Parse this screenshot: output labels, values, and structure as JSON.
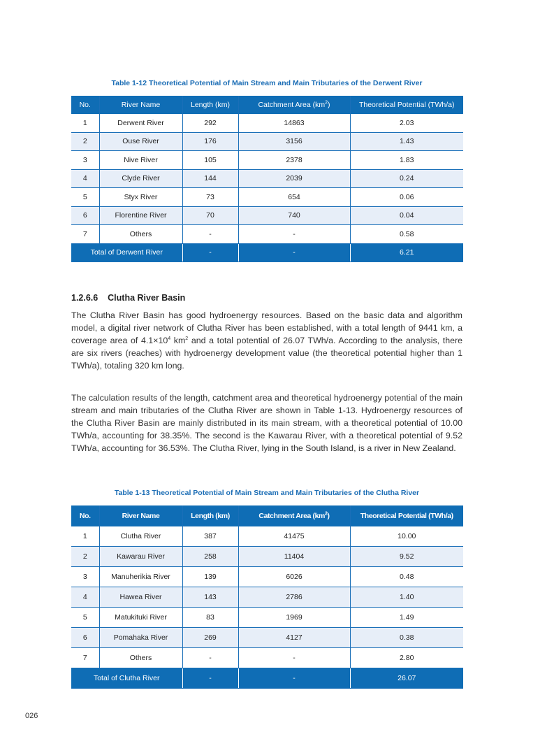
{
  "table1": {
    "caption": "Table 1-12    Theoretical Potential of Main Stream and Main Tributaries of the Derwent River",
    "headers": [
      "No.",
      "River Name",
      "Length (km)",
      "Catchment Area (km",
      "Theoretical Potential (TWh/a)"
    ],
    "header_sup": "2",
    "rows": [
      [
        "1",
        "Derwent River",
        "292",
        "14863",
        "2.03"
      ],
      [
        "2",
        "Ouse River",
        "176",
        "3156",
        "1.43"
      ],
      [
        "3",
        "Nive River",
        "105",
        "2378",
        "1.83"
      ],
      [
        "4",
        "Clyde River",
        "144",
        "2039",
        "0.24"
      ],
      [
        "5",
        "Styx River",
        "73",
        "654",
        "0.06"
      ],
      [
        "6",
        "Florentine River",
        "70",
        "740",
        "0.04"
      ],
      [
        "7",
        "Others",
        "-",
        "-",
        "0.58"
      ]
    ],
    "total": [
      "Total of Derwent River",
      "-",
      "-",
      "6.21"
    ]
  },
  "section": {
    "number": "1.2.6.6",
    "title": "Clutha River Basin"
  },
  "paragraph1": {
    "a": "The Clutha River Basin has good hydroenergy resources. Based on the basic data and algorithm model, a digital river network of Clutha River has been established, with a total length of 9441 km, a coverage area of 4.1×10",
    "sup1": "4",
    "b": " km",
    "sup2": "2",
    "c": " and a total potential of 26.07 TWh/a. According to the analysis, there are six rivers (reaches) with hydroenergy development value (the theoretical potential higher than 1 TWh/a), totaling 320 km long."
  },
  "paragraph2": "The calculation results of the length, catchment area and theoretical hydroenergy potential of the main stream and main tributaries of the Clutha River are shown in Table 1-13. Hydroenergy resources of the Clutha River Basin are mainly distributed in its main stream, with a theoretical potential of 10.00 TWh/a, accounting for 38.35%. The second is the Kawarau River, with a theoretical potential of 9.52 TWh/a, accounting for 36.53%. The Clutha River, lying in the South Island, is a river in New Zealand.",
  "table2": {
    "caption": "Table 1-13    Theoretical Potential of Main Stream and Main Tributaries of the Clutha River",
    "headers": [
      "No.",
      "River Name",
      "Length (km)",
      "Catchment Area (km",
      "Theoretical Potential (TWh/a)"
    ],
    "header_sup": "2",
    "rows": [
      [
        "1",
        "Clutha River",
        "387",
        "41475",
        "10.00"
      ],
      [
        "2",
        "Kawarau River",
        "258",
        "11404",
        "9.52"
      ],
      [
        "3",
        "Manuherikia River",
        "139",
        "6026",
        "0.48"
      ],
      [
        "4",
        "Hawea River",
        "143",
        "2786",
        "1.40"
      ],
      [
        "5",
        "Matukituki River",
        "83",
        "1969",
        "1.49"
      ],
      [
        "6",
        "Pomahaka River",
        "269",
        "4127",
        "0.38"
      ],
      [
        "7",
        "Others",
        "-",
        "-",
        "2.80"
      ]
    ],
    "total": [
      "Total of Clutha River",
      "-",
      "-",
      "26.07"
    ]
  },
  "page_number": "026",
  "colors": {
    "header_blue": "#0f6db5",
    "caption_blue": "#1b6db5",
    "row_alt": "#e7eef8"
  }
}
